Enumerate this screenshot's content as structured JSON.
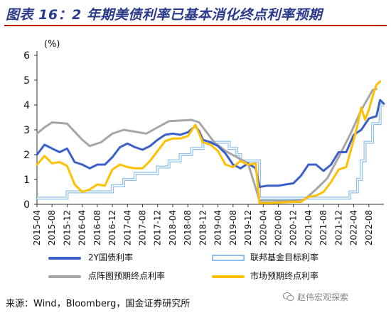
{
  "header": {
    "title": "图表 16：2 年期美债利率已基本消化终点利率预期"
  },
  "source": "来源：Wind，Bloomberg，国金证券研究所",
  "watermark": "赵伟宏观探索",
  "colors": {
    "y2": "#3a5fc8",
    "fed": "#8fc0ea",
    "dot": "#a6a6a6",
    "market": "#ffc000",
    "title": "#2a3a8c",
    "rule": "#c00000"
  },
  "chart_data": {
    "type": "line",
    "ylabel": "(%)",
    "ylim": [
      0,
      6
    ],
    "yticks": [
      0,
      1,
      2,
      3,
      4,
      5,
      6
    ],
    "xlim": [
      "2015-04",
      "2022-12"
    ],
    "xticks": [
      "2015-04",
      "2015-08",
      "2015-12",
      "2016-04",
      "2016-08",
      "2016-12",
      "2017-04",
      "2017-08",
      "2017-12",
      "2018-04",
      "2018-08",
      "2018-12",
      "2019-04",
      "2019-08",
      "2019-12",
      "2020-04",
      "2020-08",
      "2020-12",
      "2021-04",
      "2021-08",
      "2021-12",
      "2022-04",
      "2022-08"
    ],
    "series": [
      {
        "name": "2Y国债利率",
        "color": "#3a5fc8",
        "style": "line",
        "width": 3,
        "points": [
          [
            "2015-04",
            2.0
          ],
          [
            "2015-06",
            2.4
          ],
          [
            "2015-08",
            2.25
          ],
          [
            "2015-10",
            2.1
          ],
          [
            "2015-12",
            2.25
          ],
          [
            "2016-02",
            1.7
          ],
          [
            "2016-04",
            1.6
          ],
          [
            "2016-06",
            1.45
          ],
          [
            "2016-08",
            1.6
          ],
          [
            "2016-10",
            1.6
          ],
          [
            "2016-12",
            1.9
          ],
          [
            "2017-02",
            2.3
          ],
          [
            "2017-04",
            2.45
          ],
          [
            "2017-06",
            2.3
          ],
          [
            "2017-08",
            2.2
          ],
          [
            "2017-10",
            2.35
          ],
          [
            "2017-12",
            2.6
          ],
          [
            "2018-02",
            2.8
          ],
          [
            "2018-04",
            2.85
          ],
          [
            "2018-06",
            2.8
          ],
          [
            "2018-08",
            2.9
          ],
          [
            "2018-10",
            3.15
          ],
          [
            "2018-11",
            2.95
          ],
          [
            "2018-12",
            2.6
          ],
          [
            "2019-02",
            2.5
          ],
          [
            "2019-04",
            2.35
          ],
          [
            "2019-06",
            2.05
          ],
          [
            "2019-08",
            1.6
          ],
          [
            "2019-10",
            1.45
          ],
          [
            "2019-12",
            1.65
          ],
          [
            "2020-02",
            1.45
          ],
          [
            "2020-03",
            0.7
          ],
          [
            "2020-05",
            0.75
          ],
          [
            "2020-08",
            0.75
          ],
          [
            "2020-10",
            0.8
          ],
          [
            "2020-12",
            0.85
          ],
          [
            "2021-02",
            1.15
          ],
          [
            "2021-04",
            1.6
          ],
          [
            "2021-06",
            1.6
          ],
          [
            "2021-08",
            1.35
          ],
          [
            "2021-10",
            1.6
          ],
          [
            "2021-12",
            2.1
          ],
          [
            "2022-02",
            2.1
          ],
          [
            "2022-04",
            2.8
          ],
          [
            "2022-06",
            3.0
          ],
          [
            "2022-08",
            3.45
          ],
          [
            "2022-10",
            3.55
          ],
          [
            "2022-11",
            4.2
          ],
          [
            "2022-12",
            4.05
          ]
        ]
      },
      {
        "name": "联邦基金目标利率",
        "color": "#8fc0ea",
        "style": "step",
        "width": 4,
        "points": [
          [
            "2015-04",
            0.25
          ],
          [
            "2015-12",
            0.5
          ],
          [
            "2016-12",
            0.75
          ],
          [
            "2017-03",
            1.0
          ],
          [
            "2017-06",
            1.25
          ],
          [
            "2017-12",
            1.5
          ],
          [
            "2018-03",
            1.75
          ],
          [
            "2018-06",
            2.0
          ],
          [
            "2018-09",
            2.25
          ],
          [
            "2018-12",
            2.5
          ],
          [
            "2019-07",
            2.25
          ],
          [
            "2019-09",
            2.0
          ],
          [
            "2019-10",
            1.75
          ],
          [
            "2020-03",
            0.25
          ],
          [
            "2022-03",
            0.5
          ],
          [
            "2022-05",
            1.0
          ],
          [
            "2022-06",
            1.75
          ],
          [
            "2022-07",
            2.5
          ],
          [
            "2022-09",
            3.25
          ],
          [
            "2022-11",
            4.0
          ],
          [
            "2022-12",
            4.0
          ]
        ]
      },
      {
        "name": "点阵图预期终点利率",
        "color": "#a6a6a6",
        "style": "line",
        "width": 3,
        "points": [
          [
            "2015-04",
            2.85
          ],
          [
            "2015-06",
            3.1
          ],
          [
            "2015-08",
            3.3
          ],
          [
            "2015-12",
            3.25
          ],
          [
            "2016-04",
            2.6
          ],
          [
            "2016-06",
            2.35
          ],
          [
            "2016-09",
            2.5
          ],
          [
            "2016-12",
            2.85
          ],
          [
            "2017-03",
            3.0
          ],
          [
            "2017-09",
            2.85
          ],
          [
            "2017-12",
            3.1
          ],
          [
            "2018-03",
            3.35
          ],
          [
            "2018-09",
            3.4
          ],
          [
            "2018-11",
            3.3
          ],
          [
            "2018-12",
            3.1
          ],
          [
            "2019-03",
            2.5
          ],
          [
            "2019-06",
            2.15
          ],
          [
            "2019-09",
            1.9
          ],
          [
            "2019-12",
            1.65
          ],
          [
            "2020-03",
            0.15
          ],
          [
            "2020-09",
            0.15
          ],
          [
            "2020-12",
            0.15
          ],
          [
            "2021-03",
            0.2
          ],
          [
            "2021-06",
            0.6
          ],
          [
            "2021-09",
            1.05
          ],
          [
            "2021-12",
            1.9
          ],
          [
            "2022-03",
            2.8
          ],
          [
            "2022-06",
            3.8
          ],
          [
            "2022-09",
            4.6
          ],
          [
            "2022-10",
            4.65
          ]
        ]
      },
      {
        "name": "市场预期终点利率",
        "color": "#ffc000",
        "style": "line",
        "width": 3,
        "points": [
          [
            "2015-04",
            1.6
          ],
          [
            "2015-06",
            1.95
          ],
          [
            "2015-08",
            1.65
          ],
          [
            "2015-10",
            1.7
          ],
          [
            "2015-12",
            1.55
          ],
          [
            "2016-02",
            0.8
          ],
          [
            "2016-04",
            0.5
          ],
          [
            "2016-06",
            0.6
          ],
          [
            "2016-08",
            0.8
          ],
          [
            "2016-10",
            0.75
          ],
          [
            "2016-12",
            1.4
          ],
          [
            "2017-02",
            1.6
          ],
          [
            "2017-04",
            1.5
          ],
          [
            "2017-06",
            1.45
          ],
          [
            "2017-08",
            1.45
          ],
          [
            "2017-10",
            1.75
          ],
          [
            "2017-12",
            2.15
          ],
          [
            "2018-02",
            2.55
          ],
          [
            "2018-04",
            2.65
          ],
          [
            "2018-06",
            2.65
          ],
          [
            "2018-08",
            2.75
          ],
          [
            "2018-10",
            3.2
          ],
          [
            "2018-11",
            2.85
          ],
          [
            "2018-12",
            2.5
          ],
          [
            "2019-02",
            2.4
          ],
          [
            "2019-04",
            2.15
          ],
          [
            "2019-06",
            1.6
          ],
          [
            "2019-08",
            1.5
          ],
          [
            "2019-10",
            1.75
          ],
          [
            "2019-12",
            1.6
          ],
          [
            "2020-02",
            1.65
          ],
          [
            "2020-03",
            0.05
          ],
          [
            "2020-06",
            0.05
          ],
          [
            "2020-12",
            0.1
          ],
          [
            "2021-02",
            0.1
          ],
          [
            "2021-04",
            0.3
          ],
          [
            "2021-06",
            0.35
          ],
          [
            "2021-08",
            0.5
          ],
          [
            "2021-10",
            0.9
          ],
          [
            "2021-12",
            1.4
          ],
          [
            "2022-02",
            1.5
          ],
          [
            "2022-04",
            2.6
          ],
          [
            "2022-05",
            3.2
          ],
          [
            "2022-06",
            3.9
          ],
          [
            "2022-07",
            3.4
          ],
          [
            "2022-08",
            3.8
          ],
          [
            "2022-09",
            4.35
          ],
          [
            "2022-10",
            4.8
          ],
          [
            "2022-11",
            4.95
          ]
        ]
      }
    ]
  }
}
